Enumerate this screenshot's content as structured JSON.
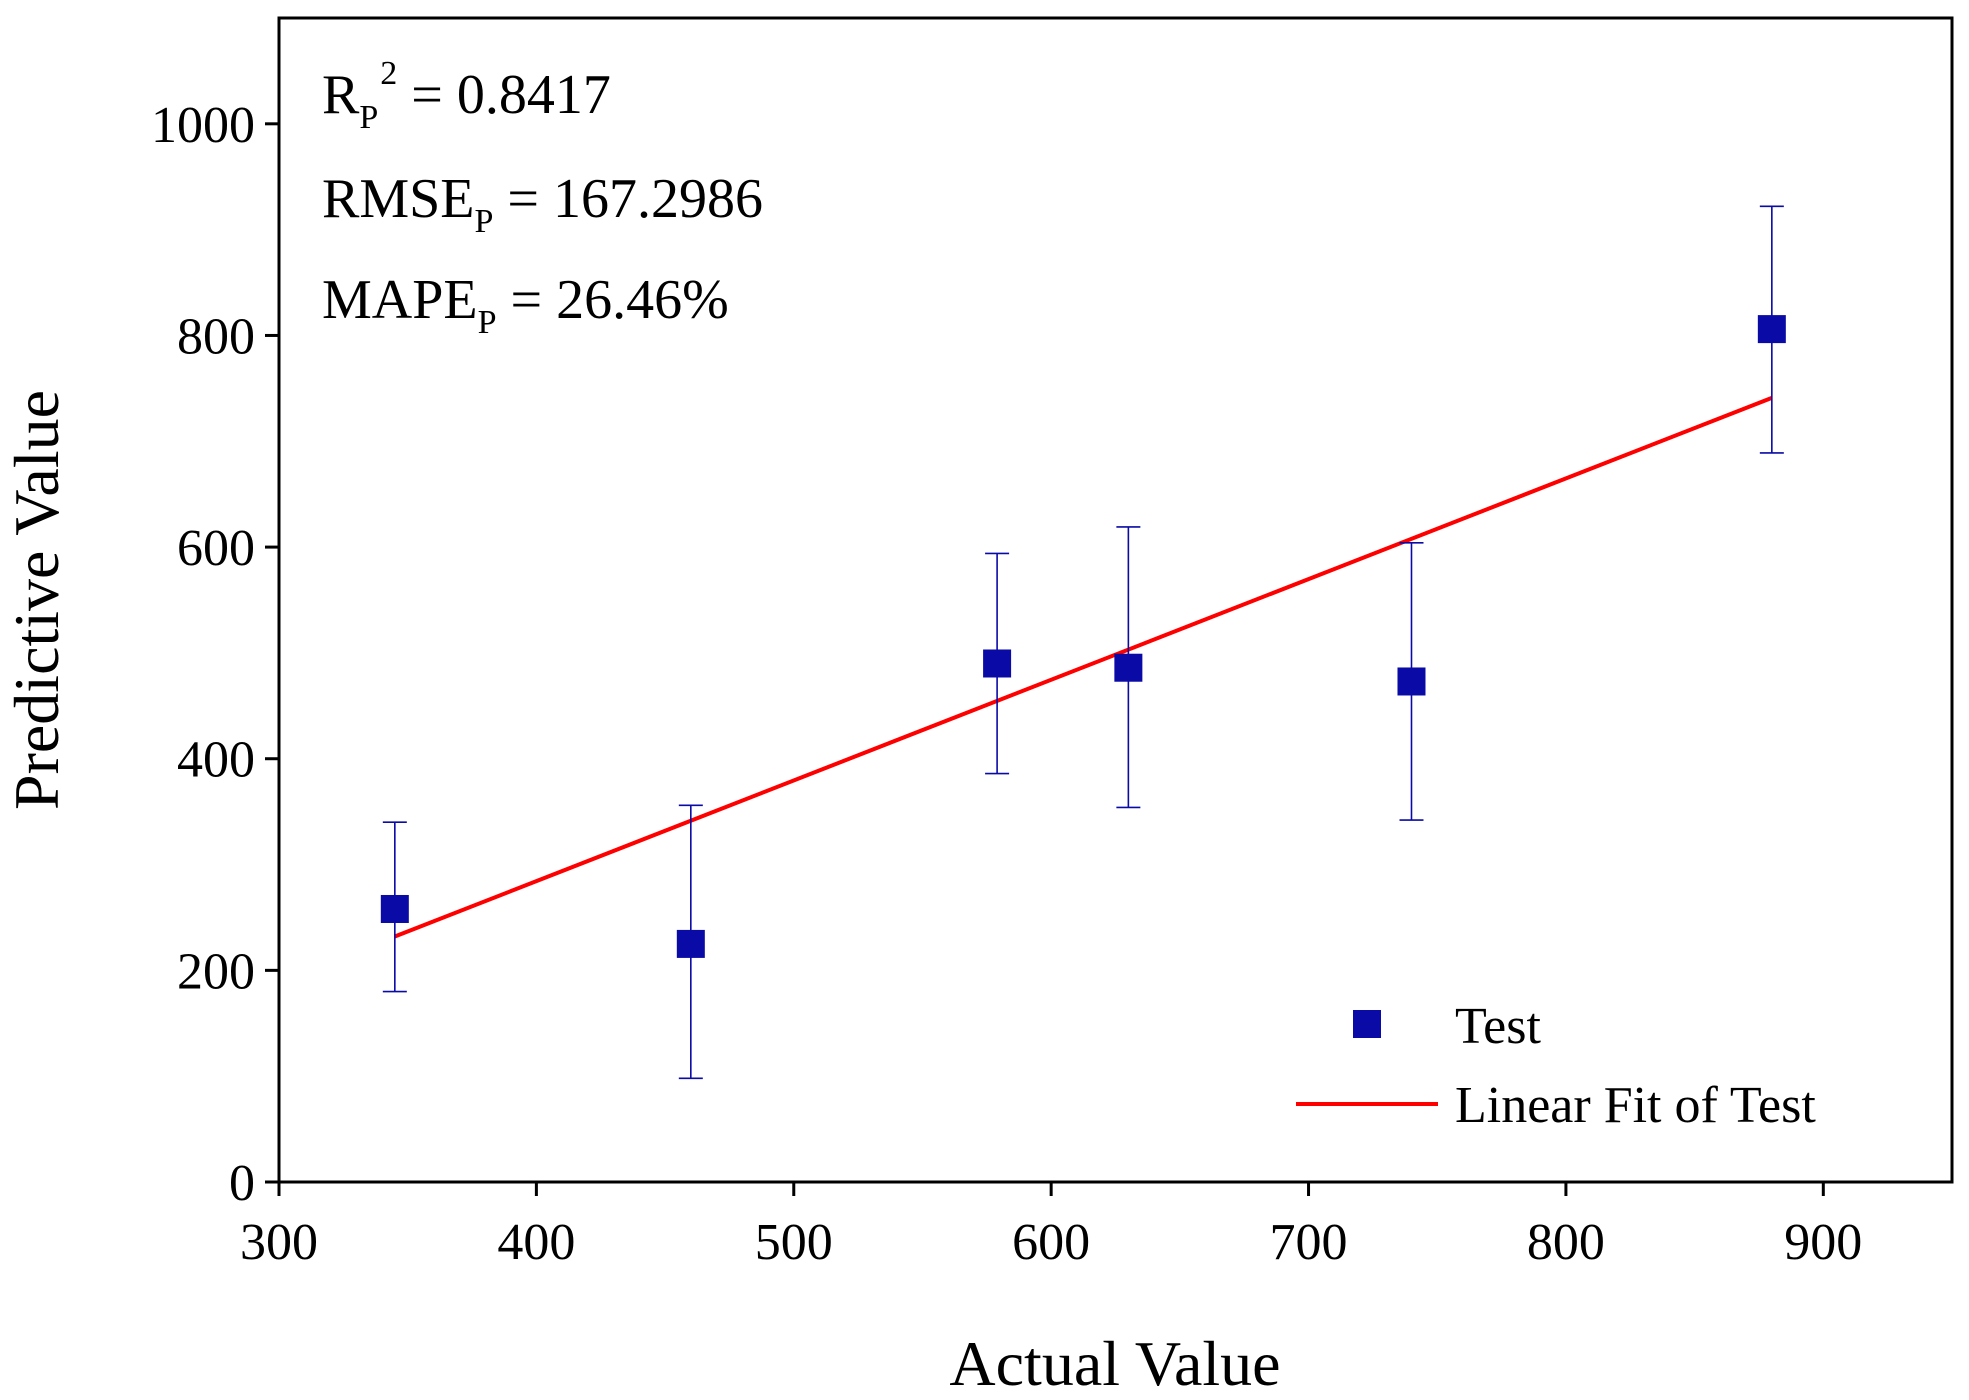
{
  "chart_data": {
    "type": "scatter",
    "title": "",
    "xlabel": "Actual Value",
    "ylabel": "Predictive Value",
    "xlim": [
      300,
      950
    ],
    "ylim": [
      0,
      1100
    ],
    "x_ticks": [
      300,
      400,
      500,
      600,
      700,
      800,
      900
    ],
    "y_ticks": [
      0,
      200,
      400,
      600,
      800,
      1000
    ],
    "grid": false,
    "legend_position": "bottom-right",
    "colors": {
      "points": "#0a0aa6",
      "fit_line": "#ff0000",
      "axes": "#000000"
    },
    "series": [
      {
        "name": "Test",
        "kind": "scatter",
        "marker": "square",
        "points": [
          {
            "x": 345,
            "y": 258,
            "err_low": 180,
            "err_high": 340
          },
          {
            "x": 460,
            "y": 225,
            "err_low": 98,
            "err_high": 356
          },
          {
            "x": 579,
            "y": 490,
            "err_low": 386,
            "err_high": 594
          },
          {
            "x": 630,
            "y": 486,
            "err_low": 354,
            "err_high": 619
          },
          {
            "x": 740,
            "y": 473,
            "err_low": 342,
            "err_high": 604
          },
          {
            "x": 880,
            "y": 806,
            "err_low": 689,
            "err_high": 922
          }
        ]
      },
      {
        "name": "Linear Fit of Test",
        "kind": "line",
        "x": [
          345,
          880
        ],
        "y": [
          232,
          741
        ]
      }
    ],
    "annotations": [
      {
        "id": "r2",
        "label": "R",
        "sub": "P",
        "sup": "2",
        "rest": " = 0.8417"
      },
      {
        "id": "rmse",
        "label": "RMSE",
        "sub": "P",
        "sup": "",
        "rest": " = 167.2986"
      },
      {
        "id": "mape",
        "label": "MAPE",
        "sub": "P",
        "sup": "",
        "rest": " = 26.46%"
      }
    ]
  }
}
